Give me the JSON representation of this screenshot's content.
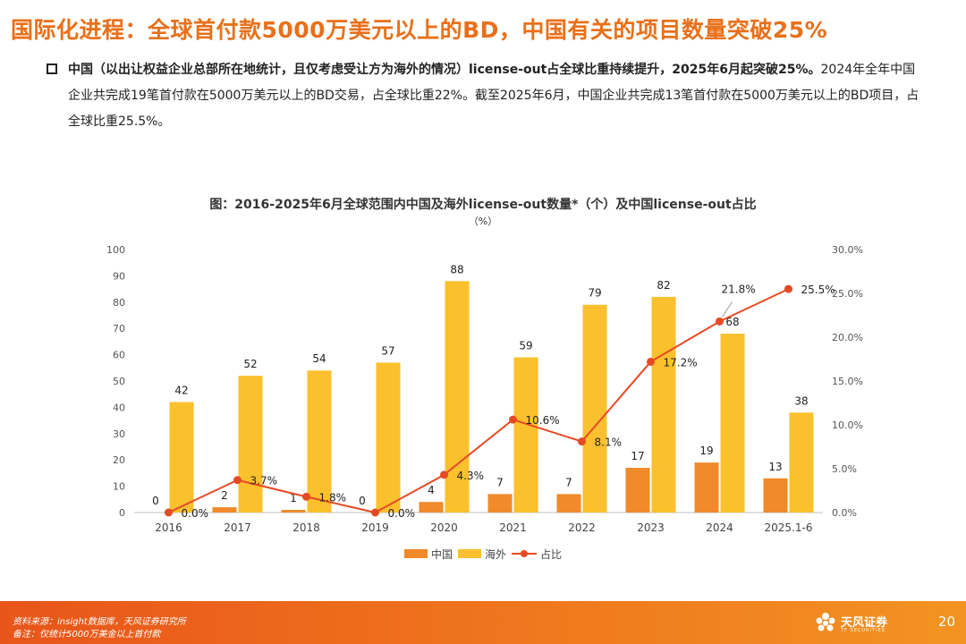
{
  "header": {
    "title": "国际化进程：全球首付款5000万美元以上的BD，中国有关的项目数量突破25%"
  },
  "summary": {
    "bold": "中国（以出让权益企业总部所在地统计，且仅考虑受让方为海外的情况）license-out占全球比重持续提升，2025年6月起突破25%。",
    "text": "2024年全年中国企业共完成19笔首付款在5000万美元以上的BD交易，占全球比重22%。截至2025年6月，中国企业共完成13笔首付款在5000万美元以上的BD项目，占全球比重25.5%。"
  },
  "chart_data": {
    "type": "bar",
    "title_line1": "图：2016-2025年6月全球范围内中国及海外license-out数量*（个）及中国license-out占比",
    "title_line2": "（%）",
    "categories": [
      "2016",
      "2017",
      "2018",
      "2019",
      "2020",
      "2021",
      "2022",
      "2023",
      "2024",
      "2025.1-6"
    ],
    "series": [
      {
        "name": "中国",
        "kind": "bar",
        "color": "#f08a2a",
        "values": [
          0,
          2,
          1,
          0,
          4,
          7,
          7,
          17,
          19,
          13
        ]
      },
      {
        "name": "海外",
        "kind": "bar",
        "color": "#fbc02d",
        "values": [
          42,
          52,
          54,
          57,
          88,
          59,
          79,
          82,
          68,
          38
        ]
      },
      {
        "name": "占比",
        "kind": "line",
        "color": "#e64a24",
        "axis": "right",
        "values": [
          0.0,
          3.7,
          1.8,
          0.0,
          4.3,
          10.6,
          8.1,
          17.2,
          21.8,
          25.5
        ],
        "labels": [
          "0.0%",
          "3.7%",
          "1.8%",
          "0.0%",
          "4.3%",
          "10.6%",
          "8.1%",
          "17.2%",
          "21.8%",
          "25.5%"
        ]
      }
    ],
    "ylim": [
      0,
      100
    ],
    "yticks": [
      "0",
      "10",
      "20",
      "30",
      "40",
      "50",
      "60",
      "70",
      "80",
      "90",
      "100"
    ],
    "y2lim": [
      0,
      30
    ],
    "y2ticks": [
      "0.0%",
      "5.0%",
      "10.0%",
      "15.0%",
      "20.0%",
      "25.0%",
      "30.0%"
    ],
    "legend": [
      "中国",
      "海外",
      "占比"
    ]
  },
  "footer": {
    "source": "资料来源：insight数据库，天风证券研究所",
    "note": "备注：仅统计5000万美金以上首付款",
    "logo_cn": "天风证券",
    "logo_en": "TF SECURITIES",
    "page": "20"
  }
}
